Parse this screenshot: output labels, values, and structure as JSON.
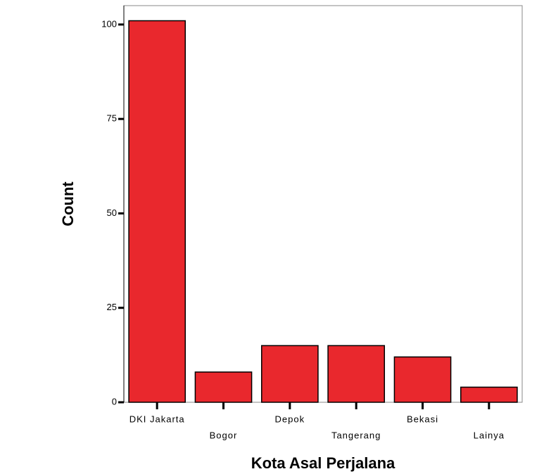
{
  "chart_data": {
    "type": "bar",
    "categories": [
      "DKI Jakarta",
      "Bogor",
      "Depok",
      "Tangerang",
      "Bekasi",
      "Lainya"
    ],
    "values": [
      101,
      8,
      15,
      15,
      12,
      4
    ],
    "color": "#e9282d",
    "x_label": "Kota Asal Perjalana",
    "y_label": "Count",
    "ylim": [
      0,
      105
    ],
    "yticks": [
      0,
      25,
      50,
      75,
      100
    ],
    "grid": false
  }
}
